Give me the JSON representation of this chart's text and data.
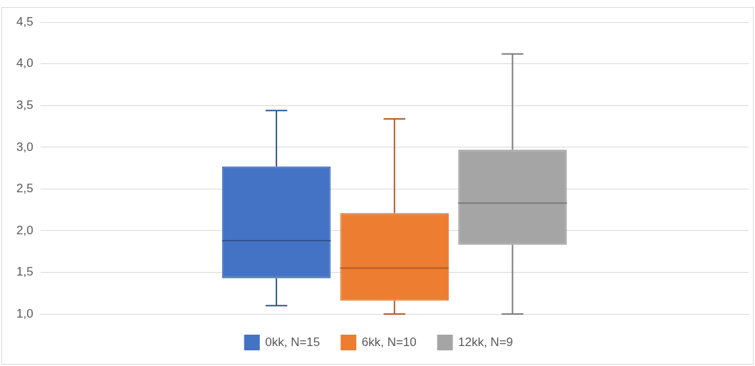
{
  "chart_data": {
    "type": "box",
    "categories": [
      null
    ],
    "series": [
      {
        "name": "0kk, N=15",
        "color": "#4472c4",
        "boxes": [
          {
            "low": 1.1,
            "q1": 1.43,
            "median": 1.88,
            "q3": 2.77,
            "high": 3.44
          }
        ]
      },
      {
        "name": "6kk, N=10",
        "color": "#ed7d31",
        "boxes": [
          {
            "low": 1.0,
            "q1": 1.16,
            "median": 1.55,
            "q3": 2.21,
            "high": 3.34
          }
        ]
      },
      {
        "name": "12kk, N=9",
        "color": "#a5a5a5",
        "boxes": [
          {
            "low": 1.0,
            "q1": 1.83,
            "median": 2.33,
            "q3": 2.97,
            "high": 4.12
          }
        ]
      }
    ],
    "ylim": [
      1.0,
      4.5
    ],
    "yticks": [
      {
        "value": 1.0,
        "label": "1,0"
      },
      {
        "value": 1.5,
        "label": "1,5"
      },
      {
        "value": 2.0,
        "label": "2,0"
      },
      {
        "value": 2.5,
        "label": "2,5"
      },
      {
        "value": 3.0,
        "label": "3,0"
      },
      {
        "value": 3.5,
        "label": "3,5"
      },
      {
        "value": 4.0,
        "label": "4,0"
      },
      {
        "value": 4.5,
        "label": "4,5"
      }
    ],
    "grid": "y",
    "legend": "bottom",
    "tick_labels": "y"
  }
}
